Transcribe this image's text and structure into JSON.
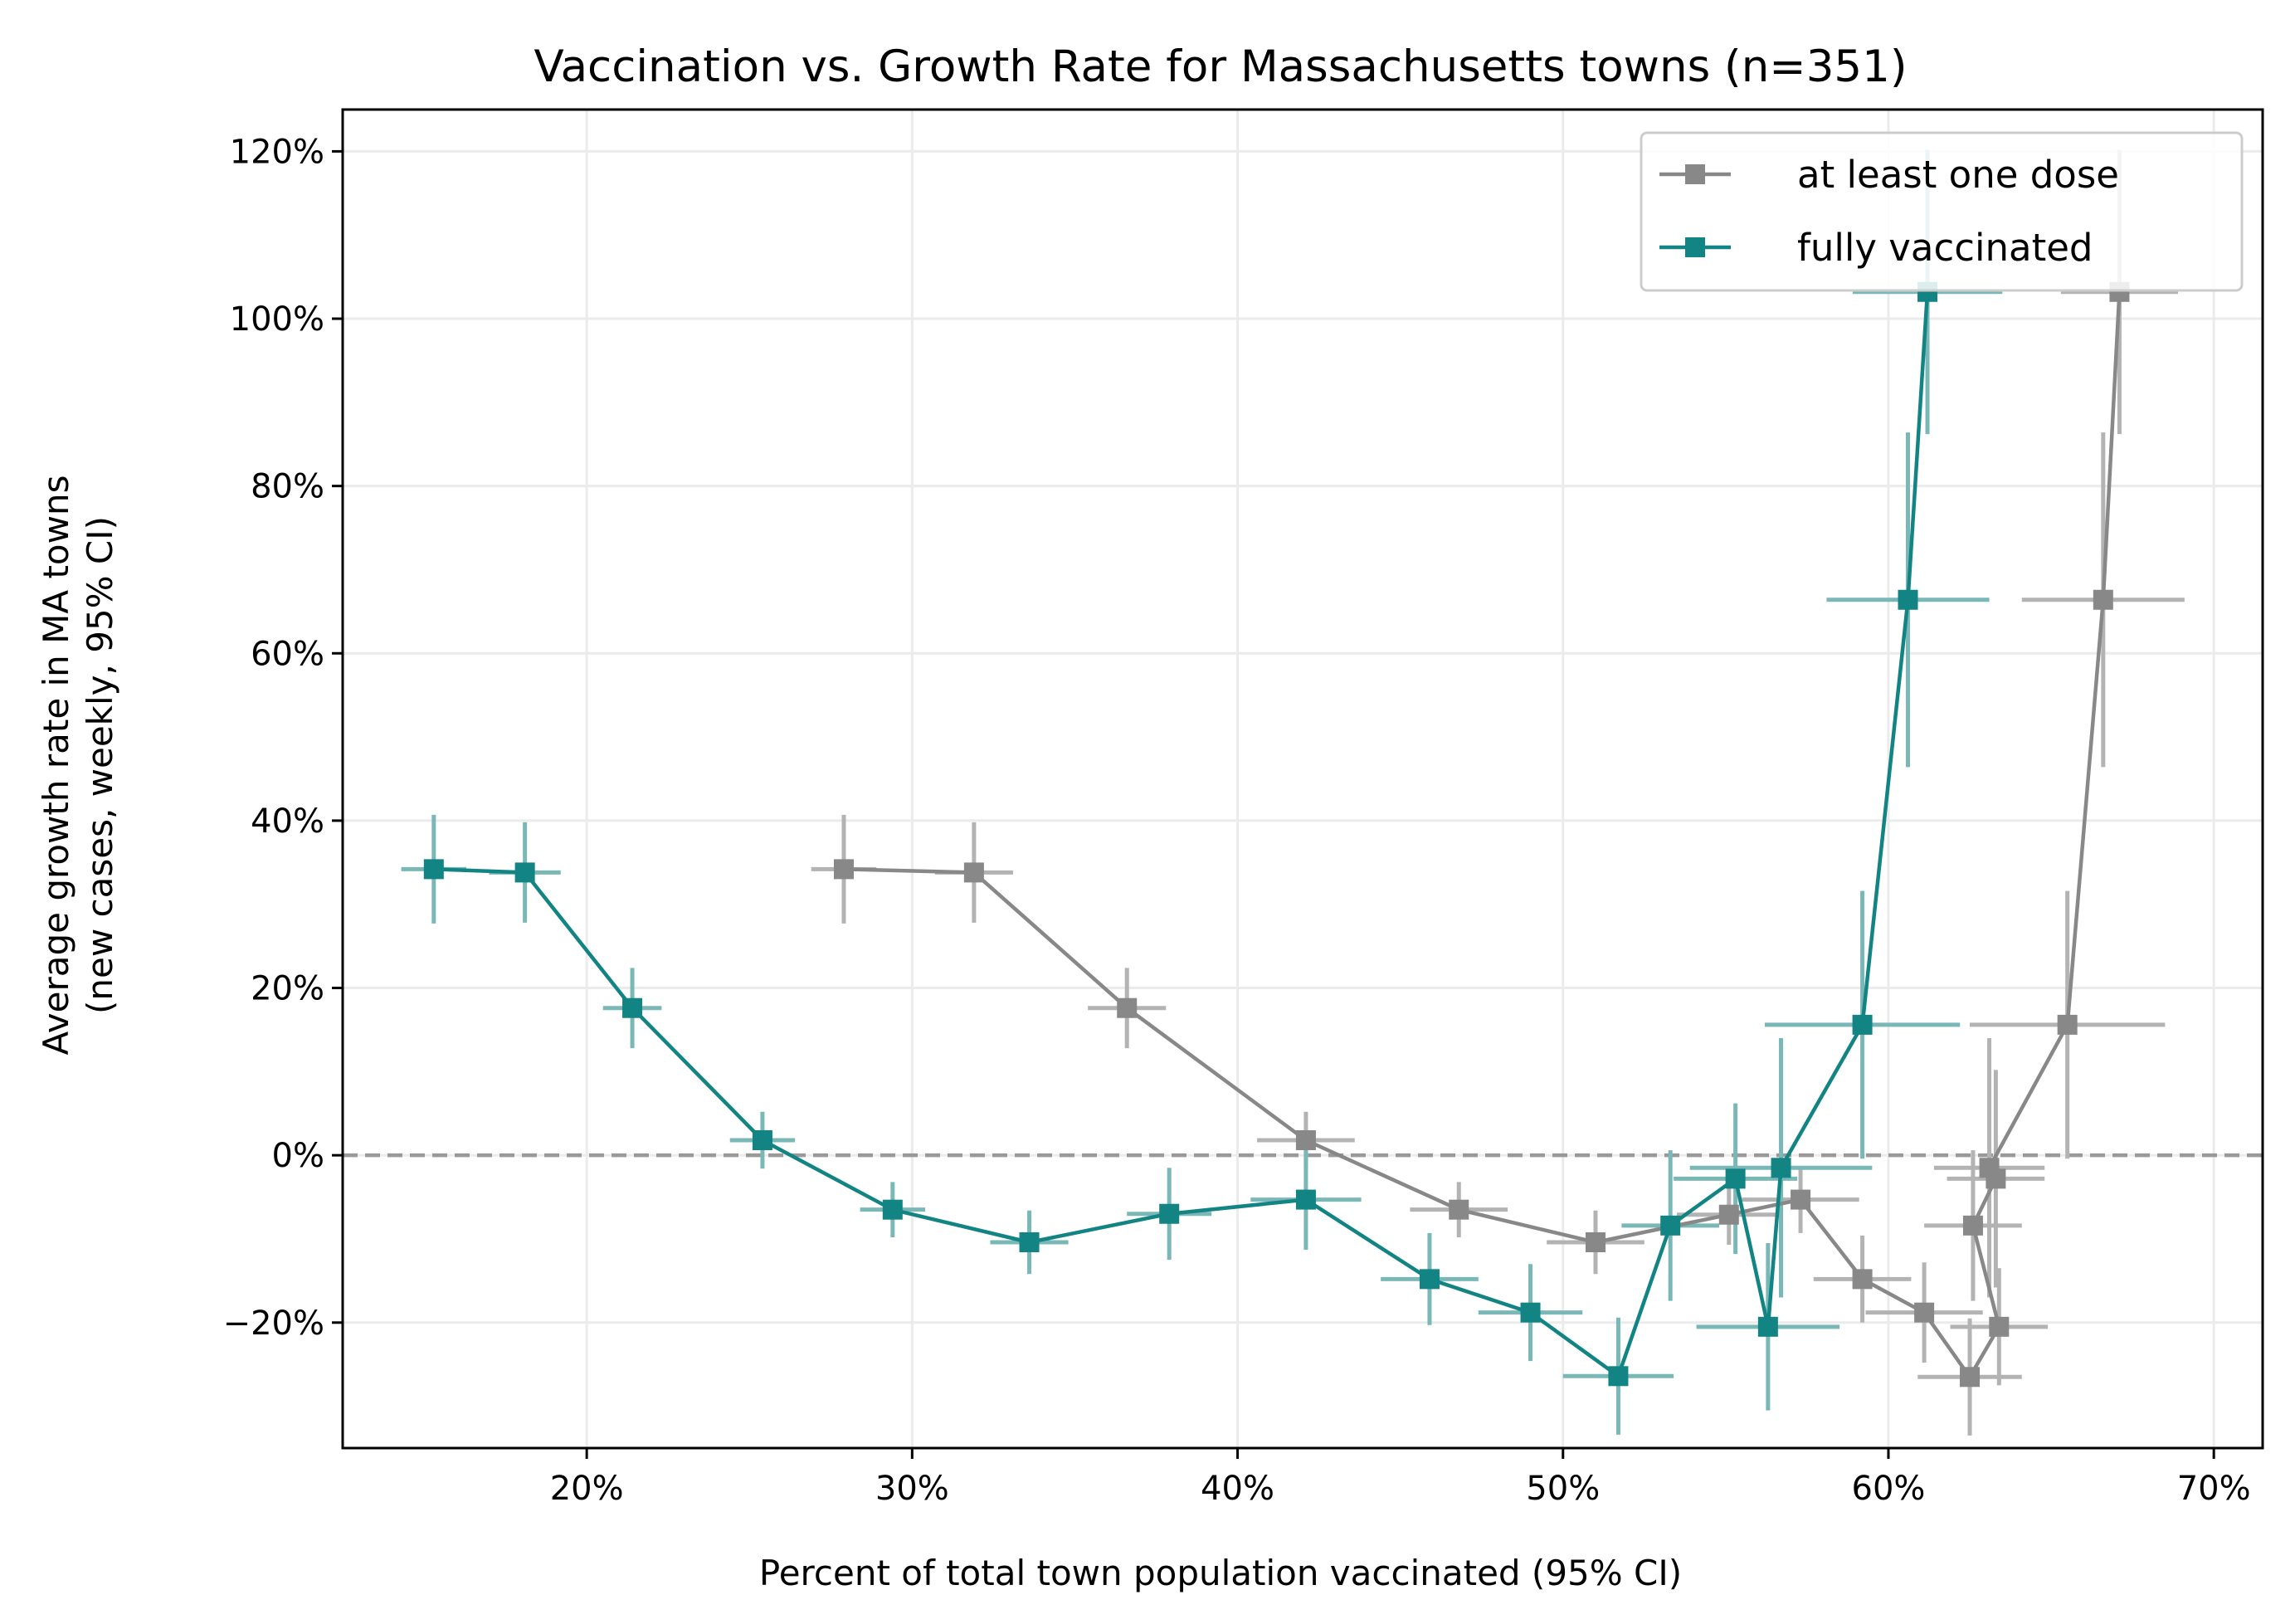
{
  "chart_data": {
    "type": "line",
    "title": "Vaccination vs. Growth Rate for Massachusetts towns (n=351)",
    "xlabel": "Percent of total town population vaccinated (95% CI)",
    "ylabel": [
      "Average growth rate in MA towns",
      "(new cases, weekly, 95% CI)"
    ],
    "xlim": [
      12.5,
      71.5
    ],
    "ylim": [
      -35,
      125
    ],
    "x_ticks": [
      20,
      30,
      40,
      50,
      60,
      70
    ],
    "x_tick_labels": [
      "20%",
      "30%",
      "40%",
      "50%",
      "60%",
      "70%"
    ],
    "y_ticks": [
      -20,
      0,
      20,
      40,
      60,
      80,
      100,
      120
    ],
    "y_tick_labels": [
      "−20%",
      "0%",
      "20%",
      "40%",
      "60%",
      "80%",
      "100%",
      "120%"
    ],
    "grid": true,
    "reference_line": {
      "y": 0,
      "style": "dashed",
      "color": "#999999"
    },
    "legend": {
      "placement": "top-right"
    },
    "series": [
      {
        "name": "at least one dose",
        "color": "#888888",
        "errorbar_color": "#b3b3b3",
        "points": [
          {
            "x": 27.9,
            "y": 34.2,
            "xerr": 1.0,
            "yerr": 6.5
          },
          {
            "x": 31.9,
            "y": 33.8,
            "xerr": 1.2,
            "yerr": 6.0
          },
          {
            "x": 36.6,
            "y": 17.6,
            "xerr": 1.2,
            "yerr": 4.8
          },
          {
            "x": 42.1,
            "y": 1.8,
            "xerr": 1.5,
            "yerr": 3.4
          },
          {
            "x": 46.8,
            "y": -6.5,
            "xerr": 1.5,
            "yerr": 3.3
          },
          {
            "x": 51.0,
            "y": -10.4,
            "xerr": 1.5,
            "yerr": 3.8
          },
          {
            "x": 55.1,
            "y": -7.1,
            "xerr": 1.6,
            "yerr": 3.6
          },
          {
            "x": 57.3,
            "y": -5.3,
            "xerr": 1.8,
            "yerr": 4.0
          },
          {
            "x": 59.2,
            "y": -14.8,
            "xerr": 1.5,
            "yerr": 5.2
          },
          {
            "x": 61.1,
            "y": -18.8,
            "xerr": 1.8,
            "yerr": 6.0
          },
          {
            "x": 62.5,
            "y": -26.5,
            "xerr": 1.6,
            "yerr": 7.0
          },
          {
            "x": 63.4,
            "y": -20.5,
            "xerr": 1.5,
            "yerr": 7.0
          },
          {
            "x": 62.6,
            "y": -8.4,
            "xerr": 1.5,
            "yerr": 9.0
          },
          {
            "x": 63.3,
            "y": -2.8,
            "xerr": 1.5,
            "yerr": 13.0
          },
          {
            "x": 63.1,
            "y": -1.5,
            "xerr": 1.7,
            "yerr": 15.5
          },
          {
            "x": 65.5,
            "y": 15.6,
            "xerr": 3.0,
            "yerr": 16.0
          },
          {
            "x": 66.6,
            "y": 66.4,
            "xerr": 2.5,
            "yerr": 20.0
          },
          {
            "x": 67.1,
            "y": 103.2,
            "xerr": 1.8,
            "yerr": 17.0
          }
        ]
      },
      {
        "name": "fully vaccinated",
        "color": "#138484",
        "errorbar_color": "#7ab8b8",
        "points": [
          {
            "x": 15.3,
            "y": 34.2,
            "xerr": 1.0,
            "yerr": 6.5
          },
          {
            "x": 18.1,
            "y": 33.8,
            "xerr": 1.1,
            "yerr": 6.0
          },
          {
            "x": 21.4,
            "y": 17.6,
            "xerr": 0.9,
            "yerr": 4.8
          },
          {
            "x": 25.4,
            "y": 1.8,
            "xerr": 1.0,
            "yerr": 3.4
          },
          {
            "x": 29.4,
            "y": -6.5,
            "xerr": 1.0,
            "yerr": 3.3
          },
          {
            "x": 33.6,
            "y": -10.4,
            "xerr": 1.2,
            "yerr": 3.8
          },
          {
            "x": 37.9,
            "y": -7.0,
            "xerr": 1.3,
            "yerr": 5.5
          },
          {
            "x": 42.1,
            "y": -5.3,
            "xerr": 1.7,
            "yerr": 6.0
          },
          {
            "x": 45.9,
            "y": -14.8,
            "xerr": 1.5,
            "yerr": 5.5
          },
          {
            "x": 49.0,
            "y": -18.8,
            "xerr": 1.6,
            "yerr": 5.8
          },
          {
            "x": 51.7,
            "y": -26.4,
            "xerr": 1.7,
            "yerr": 7.0
          },
          {
            "x": 53.3,
            "y": -8.4,
            "xerr": 1.5,
            "yerr": 9.0
          },
          {
            "x": 55.3,
            "y": -2.8,
            "xerr": 1.9,
            "yerr": 9.0
          },
          {
            "x": 56.3,
            "y": -20.5,
            "xerr": 2.2,
            "yerr": 10.0
          },
          {
            "x": 56.7,
            "y": -1.5,
            "xerr": 2.8,
            "yerr": 15.5
          },
          {
            "x": 59.2,
            "y": 15.6,
            "xerr": 3.0,
            "yerr": 16.0
          },
          {
            "x": 60.6,
            "y": 66.4,
            "xerr": 2.5,
            "yerr": 20.0
          },
          {
            "x": 61.2,
            "y": 103.2,
            "xerr": 2.3,
            "yerr": 17.0
          }
        ]
      }
    ]
  }
}
